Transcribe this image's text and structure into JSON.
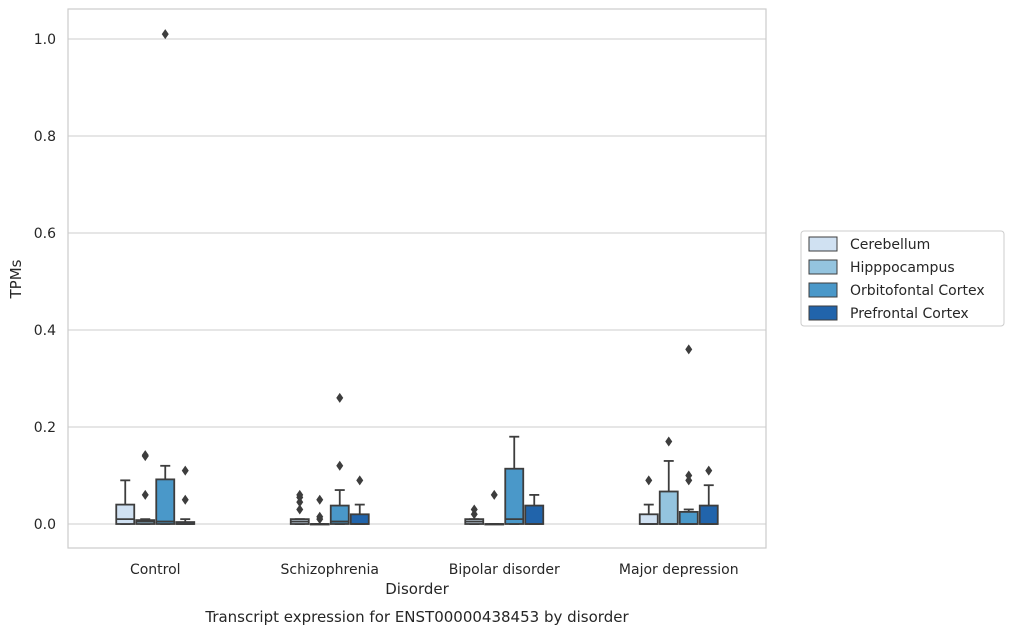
{
  "chart_data": {
    "type": "box",
    "title": "Transcript expression for ENST00000438453 by disorder",
    "xlabel": "Disorder",
    "ylabel": "TPMs",
    "ylim": [
      -0.05,
      1.06
    ],
    "yticks": [
      0.0,
      0.2,
      0.4,
      0.6,
      0.8,
      1.0
    ],
    "ytick_labels": [
      "0.0",
      "0.2",
      "0.4",
      "0.6",
      "0.8",
      "1.0"
    ],
    "grid": true,
    "legend_position": "right",
    "categories": [
      "Control",
      "Schizophrenia",
      "Bipolar disorder",
      "Major depression"
    ],
    "series": [
      {
        "name": "Cerebellum",
        "color": "#d0e1f2",
        "boxes": [
          {
            "q1": 0.0,
            "median": 0.01,
            "q3": 0.04,
            "whisker_low": 0.0,
            "whisker_high": 0.09,
            "outliers": []
          },
          {
            "q1": 0.0,
            "median": 0.005,
            "q3": 0.01,
            "whisker_low": 0.0,
            "whisker_high": 0.01,
            "outliers": [
              0.03,
              0.045,
              0.055,
              0.06
            ]
          },
          {
            "q1": 0.0,
            "median": 0.005,
            "q3": 0.01,
            "whisker_low": 0.0,
            "whisker_high": 0.01,
            "outliers": [
              0.02,
              0.03
            ]
          },
          {
            "q1": 0.0,
            "median": 0.0,
            "q3": 0.02,
            "whisker_low": 0.0,
            "whisker_high": 0.04,
            "outliers": [
              0.09
            ]
          }
        ]
      },
      {
        "name": "Hipppocampus",
        "color": "#94c4df",
        "boxes": [
          {
            "q1": 0.0,
            "median": 0.005,
            "q3": 0.008,
            "whisker_low": 0.0,
            "whisker_high": 0.01,
            "outliers": [
              0.06,
              0.14,
              0.142
            ]
          },
          {
            "q1": 0.0,
            "median": 0.0,
            "q3": 0.0,
            "whisker_low": 0.0,
            "whisker_high": 0.0,
            "outliers": [
              0.01,
              0.015,
              0.05
            ]
          },
          {
            "q1": 0.0,
            "median": 0.0,
            "q3": 0.0,
            "whisker_low": 0.0,
            "whisker_high": 0.0,
            "outliers": [
              0.06
            ]
          },
          {
            "q1": 0.0,
            "median": 0.0,
            "q3": 0.067,
            "whisker_low": 0.0,
            "whisker_high": 0.13,
            "outliers": [
              0.17
            ]
          }
        ]
      },
      {
        "name": "Orbitofontal Cortex",
        "color": "#4a98c9",
        "boxes": [
          {
            "q1": 0.0,
            "median": 0.005,
            "q3": 0.092,
            "whisker_low": 0.0,
            "whisker_high": 0.12,
            "outliers": [
              1.01
            ]
          },
          {
            "q1": 0.0,
            "median": 0.005,
            "q3": 0.038,
            "whisker_low": 0.0,
            "whisker_high": 0.07,
            "outliers": [
              0.12,
              0.26
            ]
          },
          {
            "q1": 0.0,
            "median": 0.01,
            "q3": 0.114,
            "whisker_low": 0.0,
            "whisker_high": 0.18,
            "outliers": []
          },
          {
            "q1": 0.0,
            "median": 0.0,
            "q3": 0.025,
            "whisker_low": 0.0,
            "whisker_high": 0.03,
            "outliers": [
              0.09,
              0.1,
              0.36
            ]
          }
        ]
      },
      {
        "name": "Prefrontal Cortex",
        "color": "#2164ab",
        "boxes": [
          {
            "q1": 0.0,
            "median": 0.0,
            "q3": 0.004,
            "whisker_low": 0.0,
            "whisker_high": 0.01,
            "outliers": [
              0.05,
              0.11
            ]
          },
          {
            "q1": 0.0,
            "median": 0.0,
            "q3": 0.02,
            "whisker_low": 0.0,
            "whisker_high": 0.04,
            "outliers": [
              0.09
            ]
          },
          {
            "q1": 0.0,
            "median": 0.0,
            "q3": 0.038,
            "whisker_low": 0.0,
            "whisker_high": 0.06,
            "outliers": []
          },
          {
            "q1": 0.0,
            "median": 0.0,
            "q3": 0.038,
            "whisker_low": 0.0,
            "whisker_high": 0.08,
            "outliers": [
              0.11
            ]
          }
        ]
      }
    ]
  }
}
